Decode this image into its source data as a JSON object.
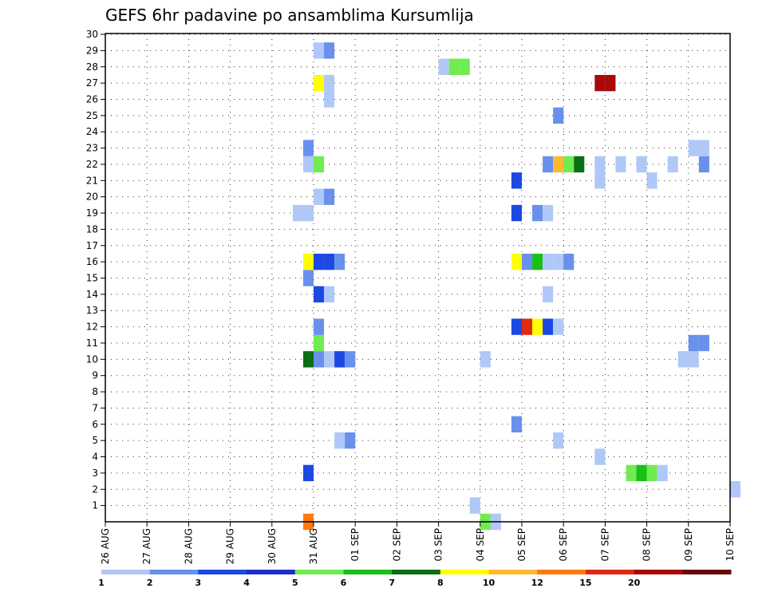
{
  "chart_data": {
    "type": "heatmap",
    "title": "GEFS 6hr padavine po ansamblima Kursumlija",
    "xlabel": "",
    "ylabel": "",
    "ylim": [
      0,
      30
    ],
    "y_tick_labels": [
      "1",
      "2",
      "3",
      "4",
      "5",
      "6",
      "7",
      "8",
      "9",
      "10",
      "11",
      "12",
      "13",
      "14",
      "15",
      "16",
      "17",
      "18",
      "19",
      "20",
      "21",
      "22",
      "23",
      "24",
      "25",
      "26",
      "27",
      "28",
      "29",
      "30"
    ],
    "x_tick_labels": [
      "26 AUG",
      "27 AUG",
      "28 AUG",
      "29 AUG",
      "30 AUG",
      "31 AUG",
      "01 SEP",
      "02 SEP",
      "03 SEP",
      "04 SEP",
      "05 SEP",
      "06 SEP",
      "07 SEP",
      "08 SEP",
      "09 SEP",
      "10 SEP"
    ],
    "time_step": "6hr",
    "grid": true,
    "colorbar": {
      "labels": [
        "1",
        "2",
        "3",
        "4",
        "5",
        "6",
        "7",
        "8",
        "10",
        "12",
        "15",
        "20"
      ],
      "colors": [
        "#b0c8f8",
        "#6890ec",
        "#1c48e4",
        "#1c30c8",
        "#70ec50",
        "#18c018",
        "#0a6e14",
        "#ffff00",
        "#ffb830",
        "#ff7a10",
        "#e02a10",
        "#a80808",
        "#6c0606"
      ]
    },
    "cells": [
      {
        "date": "30 AUG 18Z",
        "member": 0,
        "value": 12
      },
      {
        "date": "04 SEP 00Z",
        "member": 0,
        "value": 5
      },
      {
        "date": "04 SEP 06Z",
        "member": 0,
        "value": 1
      },
      {
        "date": "03 SEP 18Z",
        "member": 1,
        "value": 1
      },
      {
        "date": "10 SEP 00Z",
        "member": 2,
        "value": 1
      },
      {
        "date": "07 SEP 12Z",
        "member": 3,
        "value": 5
      },
      {
        "date": "07 SEP 18Z",
        "member": 3,
        "value": 6
      },
      {
        "date": "08 SEP 00Z",
        "member": 3,
        "value": 5
      },
      {
        "date": "08 SEP 06Z",
        "member": 3,
        "value": 1
      },
      {
        "date": "30 AUG 18Z",
        "member": 3,
        "value": 3
      },
      {
        "date": "06 SEP 18Z",
        "member": 4,
        "value": 1
      },
      {
        "date": "31 AUG 12Z",
        "member": 5,
        "value": 1
      },
      {
        "date": "31 AUG 18Z",
        "member": 5,
        "value": 2
      },
      {
        "date": "05 SEP 18Z",
        "member": 5,
        "value": 1
      },
      {
        "date": "04 SEP 18Z",
        "member": 6,
        "value": 2
      },
      {
        "date": "30 AUG 18Z",
        "member": 10,
        "value": 7
      },
      {
        "date": "31 AUG 00Z",
        "member": 10,
        "value": 2
      },
      {
        "date": "31 AUG 06Z",
        "member": 10,
        "value": 1
      },
      {
        "date": "31 AUG 12Z",
        "member": 10,
        "value": 3
      },
      {
        "date": "31 AUG 18Z",
        "member": 10,
        "value": 2
      },
      {
        "date": "04 SEP 00Z",
        "member": 10,
        "value": 1
      },
      {
        "date": "08 SEP 18Z",
        "member": 10,
        "value": 1
      },
      {
        "date": "09 SEP 00Z",
        "member": 10,
        "value": 1
      },
      {
        "date": "31 AUG 00Z",
        "member": 11,
        "value": 5
      },
      {
        "date": "09 SEP 00Z",
        "member": 11,
        "value": 2
      },
      {
        "date": "09 SEP 06Z",
        "member": 11,
        "value": 2
      },
      {
        "date": "31 AUG 00Z",
        "member": 12,
        "value": 2
      },
      {
        "date": "04 SEP 18Z",
        "member": 12,
        "value": 3
      },
      {
        "date": "05 SEP 00Z",
        "member": 12,
        "value": 15
      },
      {
        "date": "05 SEP 06Z",
        "member": 12,
        "value": 8
      },
      {
        "date": "05 SEP 12Z",
        "member": 12,
        "value": 3
      },
      {
        "date": "05 SEP 18Z",
        "member": 12,
        "value": 1
      },
      {
        "date": "31 AUG 00Z",
        "member": 14,
        "value": 3
      },
      {
        "date": "31 AUG 06Z",
        "member": 14,
        "value": 1
      },
      {
        "date": "05 SEP 12Z",
        "member": 14,
        "value": 1
      },
      {
        "date": "30 AUG 18Z",
        "member": 15,
        "value": 2
      },
      {
        "date": "30 AUG 18Z",
        "member": 16,
        "value": 8
      },
      {
        "date": "31 AUG 00Z",
        "member": 16,
        "value": 3
      },
      {
        "date": "31 AUG 06Z",
        "member": 16,
        "value": 3
      },
      {
        "date": "31 AUG 12Z",
        "member": 16,
        "value": 2
      },
      {
        "date": "04 SEP 18Z",
        "member": 16,
        "value": 8
      },
      {
        "date": "05 SEP 00Z",
        "member": 16,
        "value": 2
      },
      {
        "date": "05 SEP 06Z",
        "member": 16,
        "value": 6
      },
      {
        "date": "05 SEP 12Z",
        "member": 16,
        "value": 1
      },
      {
        "date": "05 SEP 18Z",
        "member": 16,
        "value": 1
      },
      {
        "date": "06 SEP 00Z",
        "member": 16,
        "value": 2
      },
      {
        "date": "30 AUG 12Z",
        "member": 19,
        "value": 1
      },
      {
        "date": "30 AUG 18Z",
        "member": 19,
        "value": 1
      },
      {
        "date": "04 SEP 18Z",
        "member": 19,
        "value": 3
      },
      {
        "date": "05 SEP 06Z",
        "member": 19,
        "value": 2
      },
      {
        "date": "05 SEP 12Z",
        "member": 19,
        "value": 1
      },
      {
        "date": "31 AUG 00Z",
        "member": 20,
        "value": 1
      },
      {
        "date": "31 AUG 06Z",
        "member": 20,
        "value": 2
      },
      {
        "date": "04 SEP 18Z",
        "member": 21,
        "value": 3
      },
      {
        "date": "06 SEP 18Z",
        "member": 21,
        "value": 1
      },
      {
        "date": "08 SEP 00Z",
        "member": 21,
        "value": 1
      },
      {
        "date": "30 AUG 18Z",
        "member": 22,
        "value": 1
      },
      {
        "date": "31 AUG 00Z",
        "member": 22,
        "value": 5
      },
      {
        "date": "05 SEP 12Z",
        "member": 22,
        "value": 2
      },
      {
        "date": "05 SEP 18Z",
        "member": 22,
        "value": 10
      },
      {
        "date": "06 SEP 00Z",
        "member": 22,
        "value": 5
      },
      {
        "date": "06 SEP 06Z",
        "member": 22,
        "value": 7
      },
      {
        "date": "06 SEP 18Z",
        "member": 22,
        "value": 1
      },
      {
        "date": "07 SEP 06Z",
        "member": 22,
        "value": 1
      },
      {
        "date": "07 SEP 18Z",
        "member": 22,
        "value": 1
      },
      {
        "date": "08 SEP 12Z",
        "member": 22,
        "value": 1
      },
      {
        "date": "09 SEP 06Z",
        "member": 22,
        "value": 2
      },
      {
        "date": "30 AUG 18Z",
        "member": 23,
        "value": 2
      },
      {
        "date": "09 SEP 00Z",
        "member": 23,
        "value": 1
      },
      {
        "date": "09 SEP 06Z",
        "member": 23,
        "value": 1
      },
      {
        "date": "05 SEP 18Z",
        "member": 25,
        "value": 2
      },
      {
        "date": "31 AUG 06Z",
        "member": 26,
        "value": 1
      },
      {
        "date": "31 AUG 00Z",
        "member": 27,
        "value": 8
      },
      {
        "date": "31 AUG 06Z",
        "member": 27,
        "value": 1
      },
      {
        "date": "06 SEP 18Z",
        "member": 27,
        "value": 20
      },
      {
        "date": "07 SEP 00Z",
        "member": 27,
        "value": 20
      },
      {
        "date": "03 SEP 00Z",
        "member": 28,
        "value": 1
      },
      {
        "date": "03 SEP 06Z",
        "member": 28,
        "value": 5
      },
      {
        "date": "03 SEP 12Z",
        "member": 28,
        "value": 5
      },
      {
        "date": "31 AUG 00Z",
        "member": 29,
        "value": 1
      },
      {
        "date": "31 AUG 06Z",
        "member": 29,
        "value": 2
      }
    ]
  }
}
